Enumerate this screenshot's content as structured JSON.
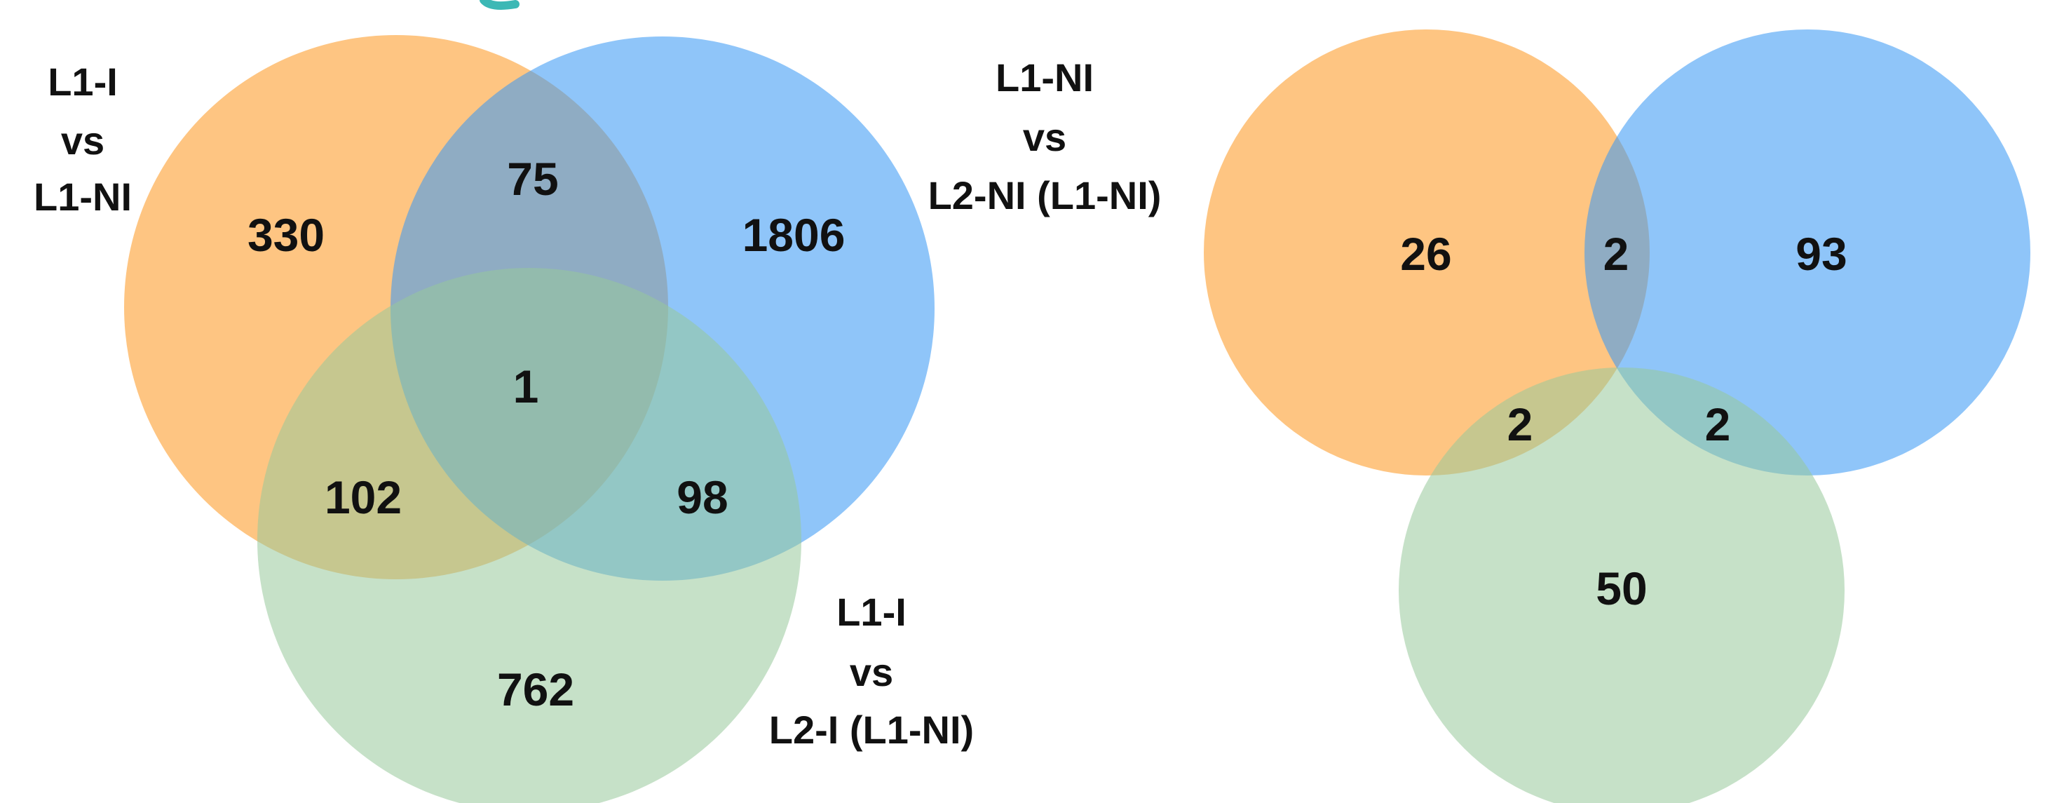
{
  "colors": {
    "orange": "#FDA135",
    "blue": "#3A99F5",
    "green": "#98C89A",
    "teal_accent": "#3CB8B5"
  },
  "left_venn": {
    "labels": {
      "orange": [
        "L1-I",
        "vs",
        "L1-NI"
      ],
      "blue": [
        "L1-NI",
        "vs",
        "L2-NI (L1-NI)"
      ],
      "green": [
        "L1-I",
        "vs",
        "L2-I (L1-NI)"
      ]
    },
    "counts": {
      "orange_only": "330",
      "blue_only": "1806",
      "green_only": "762",
      "orange_blue": "75",
      "orange_green": "102",
      "blue_green": "98",
      "all_three": "1"
    }
  },
  "right_venn": {
    "counts": {
      "orange_only": "26",
      "blue_only": "93",
      "green_only": "50",
      "orange_blue": "2",
      "orange_green": "2",
      "blue_green": "2"
    }
  }
}
